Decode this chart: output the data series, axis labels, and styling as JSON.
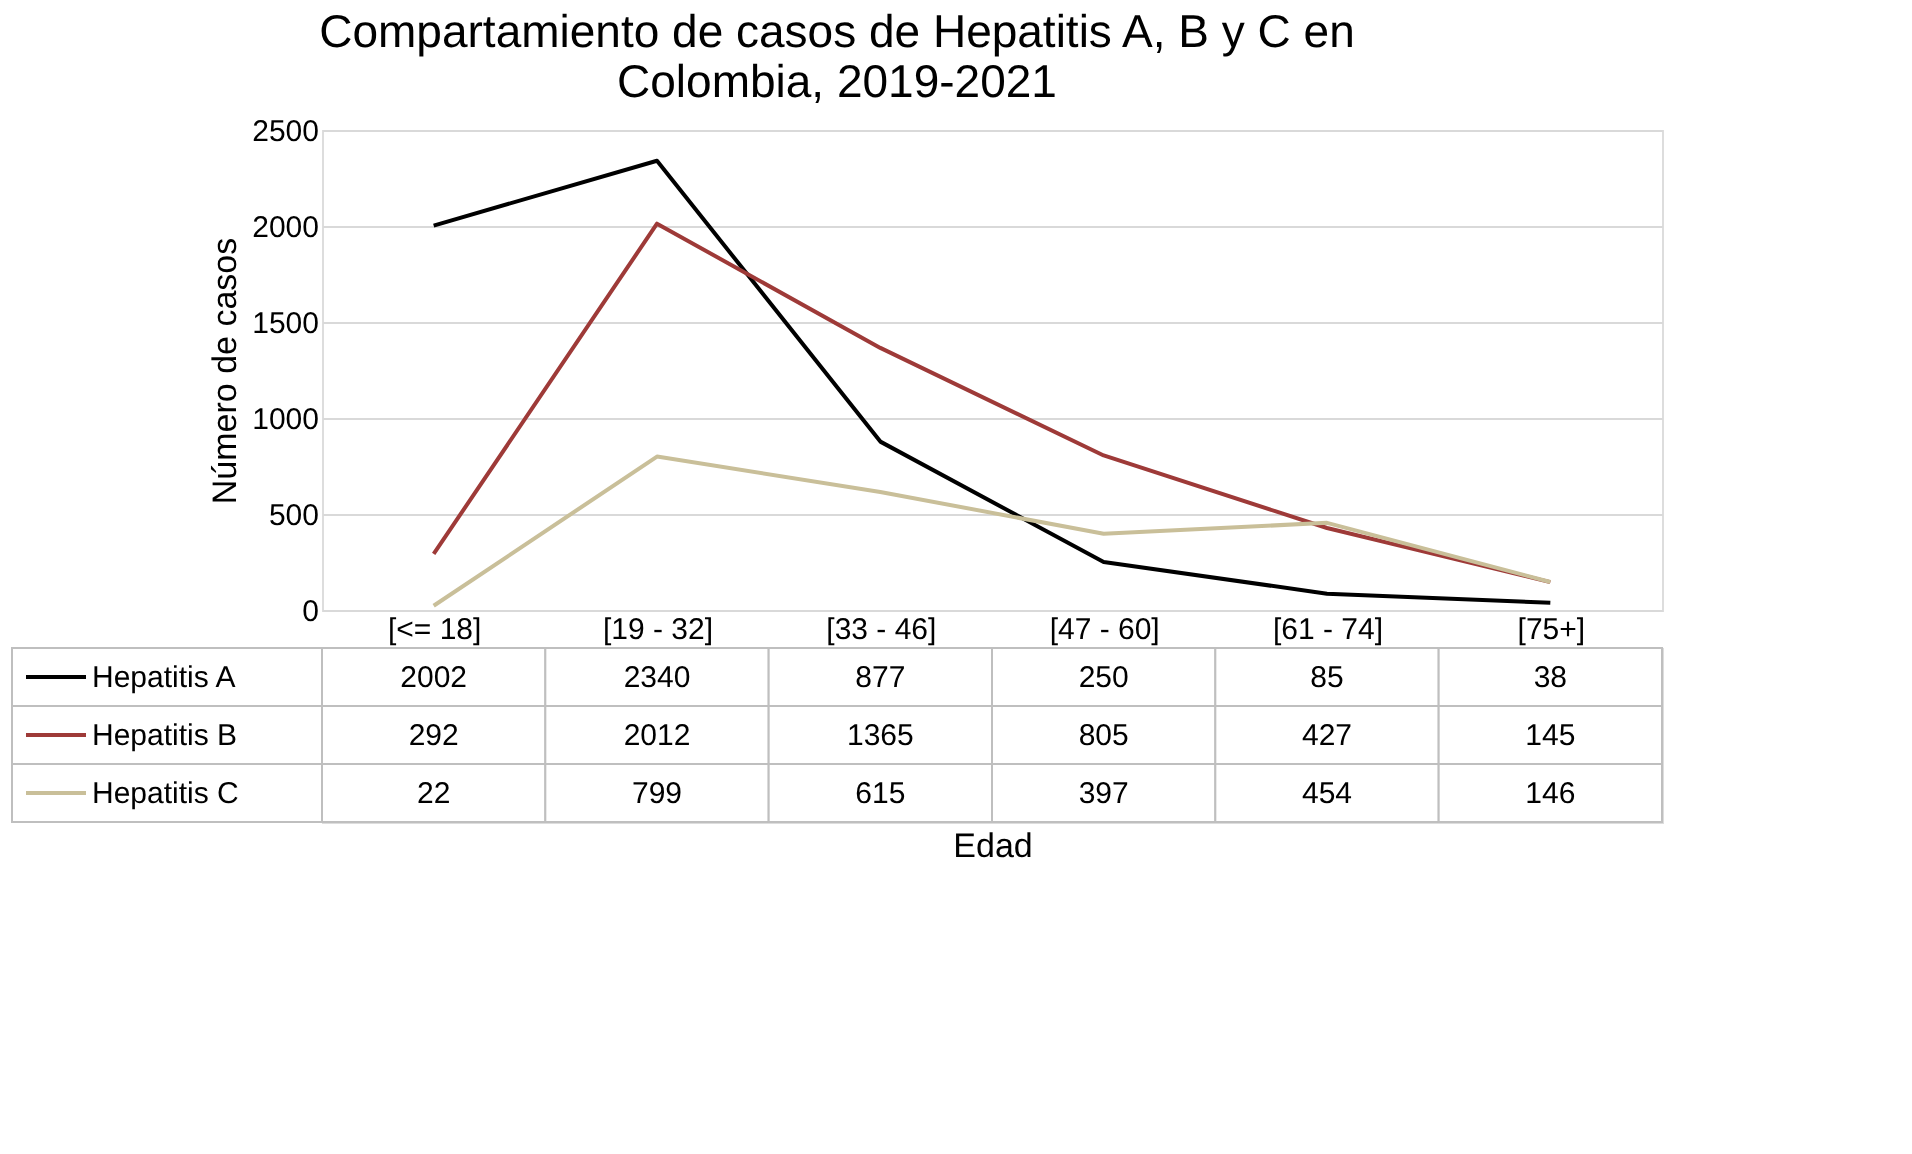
{
  "chart_data": {
    "type": "line",
    "title": "Compartamiento de casos de Hepatitis A, B y C en Colombia, 2019-2021",
    "annotations": [
      "Edad"
    ],
    "ylabel": "Número de casos",
    "categories": [
      "[<= 18]",
      "[19 - 32]",
      "[33 - 46]",
      "[47 - 60]",
      "[61 - 74]",
      "[75+]"
    ],
    "series": [
      {
        "name": "Hepatitis A",
        "color": "#000000",
        "values": [
          2002,
          2340,
          877,
          250,
          85,
          38
        ]
      },
      {
        "name": "Hepatitis B",
        "color": "#9e3a38",
        "values": [
          292,
          2012,
          1365,
          805,
          427,
          145
        ]
      },
      {
        "name": "Hepatitis C",
        "color": "#c9bf99",
        "values": [
          22,
          799,
          615,
          397,
          454,
          146
        ]
      }
    ],
    "ylim": [
      0,
      2500
    ],
    "yticks": [
      0,
      500,
      1000,
      1500,
      2000,
      2500
    ],
    "grid": "y",
    "legend": "bottom",
    "data_labels": true,
    "marker": "none"
  }
}
